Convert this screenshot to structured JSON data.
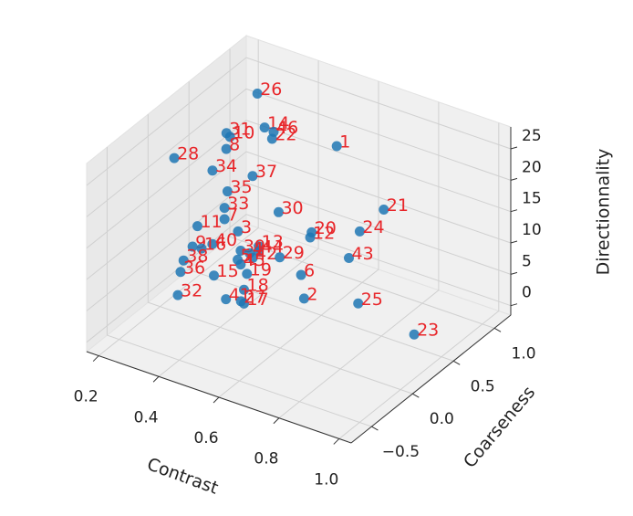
{
  "chart_data": {
    "type": "scatter",
    "xlabel": "Contrast",
    "ylabel": "Coarseness",
    "zlabel": "Directionnality",
    "xlim": [
      0.16,
      1.04
    ],
    "ylim": [
      -0.75,
      1.2
    ],
    "zlim": [
      -1.5,
      28.5
    ],
    "xticks": [
      0.2,
      0.4,
      0.6,
      0.8,
      {
        "value": 1,
        "label": "1.0"
      }
    ],
    "yticks": [
      {
        "value": -0.5,
        "label": "−0.5"
      },
      {
        "value": 0,
        "label": "0.0"
      },
      0.5,
      {
        "value": 1,
        "label": "1.0"
      }
    ],
    "zticks": [
      0,
      5,
      10,
      15,
      20,
      25
    ],
    "grid": true,
    "color": "#1f77b4",
    "label_color": "#e8262a",
    "labels": [
      "26",
      "31",
      "10",
      "14",
      "46",
      "22",
      "1",
      "37",
      "28",
      "34",
      "8",
      "35",
      "33",
      "7",
      "30",
      "21",
      "11",
      "3",
      "20",
      "12",
      "24",
      "40",
      "9",
      "16",
      "13",
      "39",
      "44",
      "4",
      "42",
      "29",
      "43",
      "38",
      "5",
      "45",
      "36",
      "15",
      "19",
      "6",
      "18",
      "41",
      "17",
      "27",
      "32",
      "2",
      "25",
      "23"
    ],
    "x": [
      0.276,
      0.173,
      0.185,
      0.3,
      0.33,
      0.325,
      0.54,
      0.26,
      0.186,
      0.26,
      0.306,
      0.31,
      0.3,
      0.3,
      0.48,
      0.83,
      0.21,
      0.345,
      0.59,
      0.585,
      0.75,
      0.366,
      0.3,
      0.33,
      0.52,
      0.46,
      0.52,
      0.49,
      0.5,
      0.59,
      0.82,
      0.27,
      0.45,
      0.46,
      0.26,
      0.45,
      0.56,
      0.74,
      0.55,
      0.49,
      0.55,
      0.54,
      0.33,
      0.75,
      0.93,
      1.01
    ],
    "y": [
      0.91,
      0.91,
      0.91,
      0.91,
      0.91,
      0.91,
      0.91,
      0.91,
      0.225,
      0.42,
      0.42,
      0.42,
      0.42,
      0.42,
      0.42,
      0.42,
      0.42,
      0.42,
      0.42,
      0.42,
      0.42,
      0.03,
      0.03,
      0.03,
      0.03,
      0.03,
      0.03,
      0.03,
      0.03,
      0.03,
      0.03,
      0.03,
      0.03,
      0.03,
      0.03,
      -0.26,
      -0.26,
      -0.26,
      -0.26,
      -0.26,
      -0.26,
      -0.26,
      -0.26,
      -0.26,
      -0.26,
      0.13
    ],
    "z": [
      24.2,
      16.2,
      15.8,
      19.2,
      19.0,
      17.8,
      20.2,
      10.8,
      19.6,
      16.8,
      21.0,
      14.3,
      11.5,
      9.7,
      13.8,
      20.0,
      7.1,
      8.5,
      12.4,
      11.5,
      15.2,
      10.9,
      9.4,
      9.6,
      13.1,
      11.4,
      12.3,
      11.5,
      10.9,
      12.5,
      16.2,
      6.7,
      9.8,
      9.2,
      4.7,
      10.3,
      12.4,
      15.2,
      9.7,
      7.2,
      7.5,
      7.7,
      5.2,
      11.6,
      13.8,
      6.1
    ]
  }
}
